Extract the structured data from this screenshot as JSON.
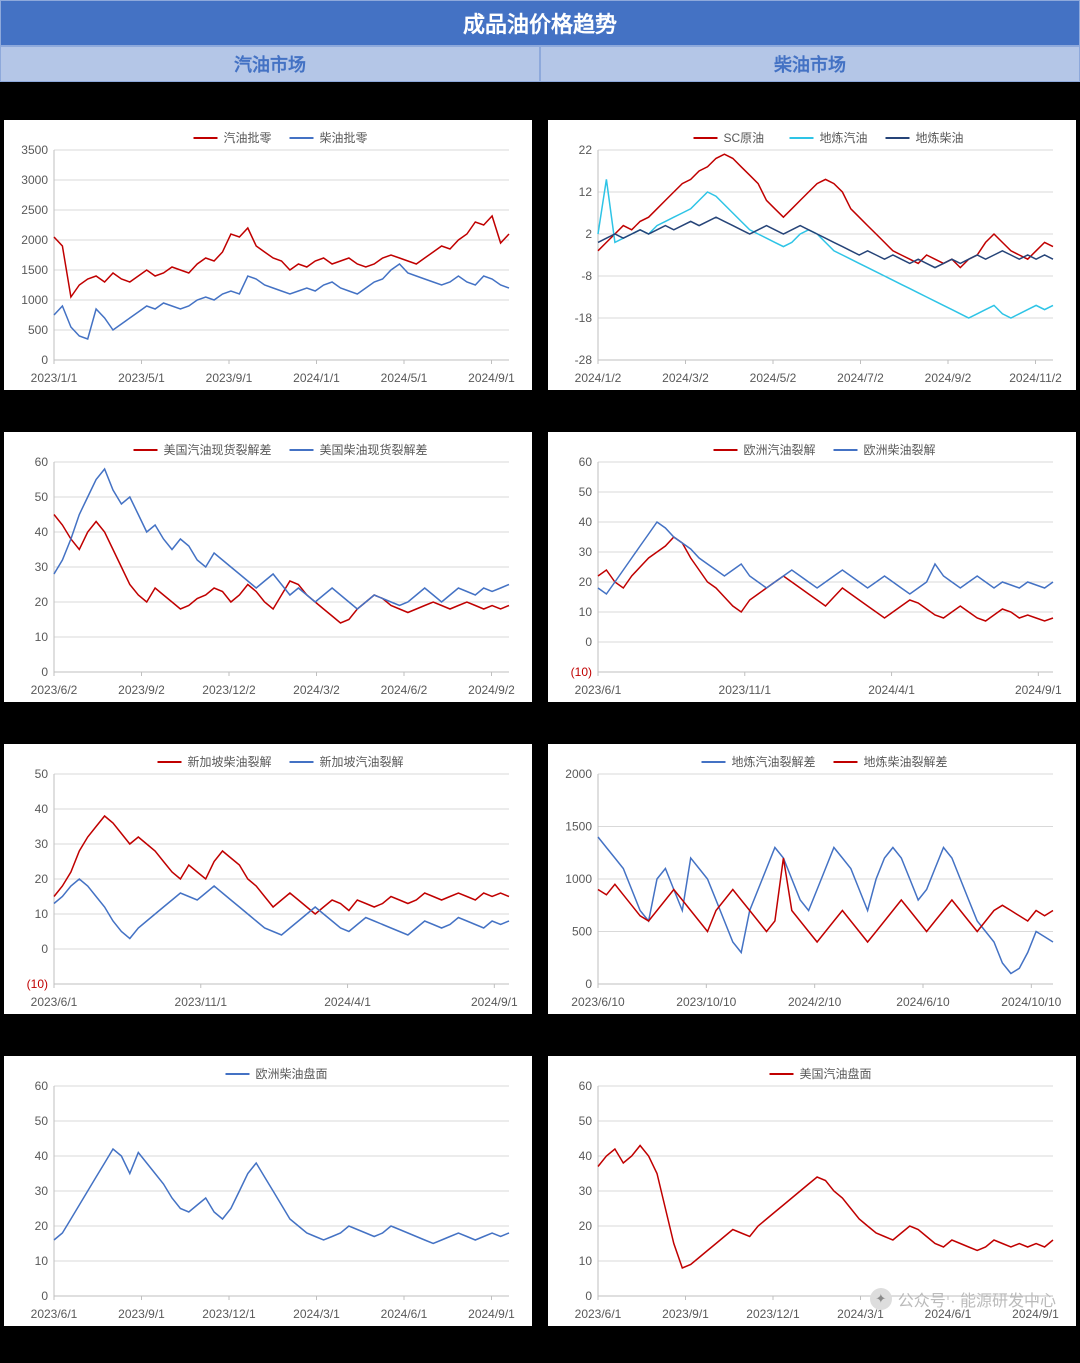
{
  "page_title": "成品油价格趋势",
  "subheaders": [
    "汽油市场",
    "柴油市场"
  ],
  "watermark": "公众号 · 能源研发中心",
  "colors": {
    "header_bg": "#4472c4",
    "subheader_bg": "#b4c6e7",
    "subheader_text": "#4472c4",
    "axis_text": "#595959",
    "grid": "#d9d9d9",
    "red": "#c00000",
    "blue": "#4472c4",
    "cyan": "#2ec4e6",
    "navy": "#264478"
  },
  "charts": [
    {
      "id": "c1",
      "type": "line",
      "legend": [
        {
          "label": "汽油批零",
          "color": "#c00000"
        },
        {
          "label": "柴油批零",
          "color": "#4472c4"
        }
      ],
      "xlabels": [
        "2023/1/1",
        "2023/5/1",
        "2023/9/1",
        "2024/1/1",
        "2024/5/1",
        "2024/9/1"
      ],
      "ylim": [
        0,
        3500
      ],
      "ystep": 500,
      "series": [
        {
          "color": "#c00000",
          "data": [
            2050,
            1900,
            1050,
            1250,
            1350,
            1400,
            1300,
            1450,
            1350,
            1300,
            1400,
            1500,
            1400,
            1450,
            1550,
            1500,
            1450,
            1600,
            1700,
            1650,
            1800,
            2100,
            2050,
            2200,
            1900,
            1800,
            1700,
            1650,
            1500,
            1600,
            1550,
            1650,
            1700,
            1600,
            1650,
            1700,
            1600,
            1550,
            1600,
            1700,
            1750,
            1700,
            1650,
            1600,
            1700,
            1800,
            1900,
            1850,
            2000,
            2100,
            2300,
            2250,
            2400,
            1950,
            2100
          ]
        },
        {
          "color": "#4472c4",
          "data": [
            750,
            900,
            550,
            400,
            350,
            850,
            700,
            500,
            600,
            700,
            800,
            900,
            850,
            950,
            900,
            850,
            900,
            1000,
            1050,
            1000,
            1100,
            1150,
            1100,
            1400,
            1350,
            1250,
            1200,
            1150,
            1100,
            1150,
            1200,
            1150,
            1250,
            1300,
            1200,
            1150,
            1100,
            1200,
            1300,
            1350,
            1500,
            1600,
            1450,
            1400,
            1350,
            1300,
            1250,
            1300,
            1400,
            1300,
            1250,
            1400,
            1350,
            1250,
            1200
          ]
        }
      ]
    },
    {
      "id": "c2",
      "type": "line",
      "legend": [
        {
          "label": "SC原油",
          "color": "#c00000"
        },
        {
          "label": "地炼汽油",
          "color": "#2ec4e6"
        },
        {
          "label": "地炼柴油",
          "color": "#264478"
        }
      ],
      "xlabels": [
        "2024/1/2",
        "2024/3/2",
        "2024/5/2",
        "2024/7/2",
        "2024/9/2",
        "2024/11/2"
      ],
      "ylim": [
        -28,
        22
      ],
      "yticks": [
        -28,
        -18,
        -8,
        2,
        12,
        22
      ],
      "series": [
        {
          "color": "#c00000",
          "data": [
            -2,
            0,
            2,
            4,
            3,
            5,
            6,
            8,
            10,
            12,
            14,
            15,
            17,
            18,
            20,
            21,
            20,
            18,
            16,
            14,
            10,
            8,
            6,
            8,
            10,
            12,
            14,
            15,
            14,
            12,
            8,
            6,
            4,
            2,
            0,
            -2,
            -3,
            -4,
            -5,
            -3,
            -4,
            -5,
            -4,
            -6,
            -4,
            -3,
            0,
            2,
            0,
            -2,
            -3,
            -4,
            -2,
            0,
            -1
          ]
        },
        {
          "color": "#2ec4e6",
          "data": [
            2,
            15,
            0,
            1,
            2,
            3,
            2,
            4,
            5,
            6,
            7,
            8,
            10,
            12,
            11,
            9,
            7,
            5,
            3,
            2,
            1,
            0,
            -1,
            0,
            2,
            3,
            2,
            0,
            -2,
            -3,
            -4,
            -5,
            -6,
            -7,
            -8,
            -9,
            -10,
            -11,
            -12,
            -13,
            -14,
            -15,
            -16,
            -17,
            -18,
            -17,
            -16,
            -15,
            -17,
            -18,
            -17,
            -16,
            -15,
            -16,
            -15
          ]
        },
        {
          "color": "#264478",
          "data": [
            0,
            1,
            2,
            1,
            2,
            3,
            2,
            3,
            4,
            3,
            4,
            5,
            4,
            5,
            6,
            5,
            4,
            3,
            2,
            3,
            4,
            3,
            2,
            3,
            4,
            3,
            2,
            1,
            0,
            -1,
            -2,
            -3,
            -2,
            -3,
            -4,
            -3,
            -4,
            -5,
            -4,
            -5,
            -6,
            -5,
            -4,
            -5,
            -4,
            -3,
            -4,
            -3,
            -2,
            -3,
            -4,
            -3,
            -4,
            -3,
            -4
          ]
        }
      ]
    },
    {
      "id": "c3",
      "type": "line",
      "legend": [
        {
          "label": "美国汽油现货裂解差",
          "color": "#c00000"
        },
        {
          "label": "美国柴油现货裂解差",
          "color": "#4472c4"
        }
      ],
      "xlabels": [
        "2023/6/2",
        "2023/9/2",
        "2023/12/2",
        "2024/3/2",
        "2024/6/2",
        "2024/9/2"
      ],
      "ylim": [
        0,
        60
      ],
      "ystep": 10,
      "series": [
        {
          "color": "#c00000",
          "data": [
            45,
            42,
            38,
            35,
            40,
            43,
            40,
            35,
            30,
            25,
            22,
            20,
            24,
            22,
            20,
            18,
            19,
            21,
            22,
            24,
            23,
            20,
            22,
            25,
            23,
            20,
            18,
            22,
            26,
            25,
            22,
            20,
            18,
            16,
            14,
            15,
            18,
            20,
            22,
            21,
            19,
            18,
            17,
            18,
            19,
            20,
            19,
            18,
            19,
            20,
            19,
            18,
            19,
            18,
            19
          ]
        },
        {
          "color": "#4472c4",
          "data": [
            28,
            32,
            38,
            45,
            50,
            55,
            58,
            52,
            48,
            50,
            45,
            40,
            42,
            38,
            35,
            38,
            36,
            32,
            30,
            34,
            32,
            30,
            28,
            26,
            24,
            26,
            28,
            25,
            22,
            24,
            22,
            20,
            22,
            24,
            22,
            20,
            18,
            20,
            22,
            21,
            20,
            19,
            20,
            22,
            24,
            22,
            20,
            22,
            24,
            23,
            22,
            24,
            23,
            24,
            25
          ]
        }
      ]
    },
    {
      "id": "c4",
      "type": "line",
      "legend": [
        {
          "label": "欧洲汽油裂解",
          "color": "#c00000"
        },
        {
          "label": "欧洲柴油裂解",
          "color": "#4472c4"
        }
      ],
      "xlabels": [
        "2023/6/1",
        "2023/11/1",
        "2024/4/1",
        "2024/9/1"
      ],
      "ylim": [
        -10,
        60
      ],
      "yticks": [
        -10,
        0,
        10,
        20,
        30,
        40,
        50,
        60
      ],
      "neg_labels_red": true,
      "series": [
        {
          "color": "#c00000",
          "data": [
            22,
            24,
            20,
            18,
            22,
            25,
            28,
            30,
            32,
            35,
            33,
            28,
            24,
            20,
            18,
            15,
            12,
            10,
            14,
            16,
            18,
            20,
            22,
            20,
            18,
            16,
            14,
            12,
            15,
            18,
            16,
            14,
            12,
            10,
            8,
            10,
            12,
            14,
            13,
            11,
            9,
            8,
            10,
            12,
            10,
            8,
            7,
            9,
            11,
            10,
            8,
            9,
            8,
            7,
            8
          ]
        },
        {
          "color": "#4472c4",
          "data": [
            18,
            16,
            20,
            24,
            28,
            32,
            36,
            40,
            38,
            35,
            33,
            31,
            28,
            26,
            24,
            22,
            24,
            26,
            22,
            20,
            18,
            20,
            22,
            24,
            22,
            20,
            18,
            20,
            22,
            24,
            22,
            20,
            18,
            20,
            22,
            20,
            18,
            16,
            18,
            20,
            26,
            22,
            20,
            18,
            20,
            22,
            20,
            18,
            20,
            19,
            18,
            20,
            19,
            18,
            20
          ]
        }
      ]
    },
    {
      "id": "c5",
      "type": "line",
      "legend": [
        {
          "label": "新加坡柴油裂解",
          "color": "#c00000"
        },
        {
          "label": "新加坡汽油裂解",
          "color": "#4472c4"
        }
      ],
      "xlabels": [
        "2023/6/1",
        "2023/11/1",
        "2024/4/1",
        "2024/9/1"
      ],
      "ylim": [
        -10,
        50
      ],
      "yticks": [
        -10,
        0,
        10,
        20,
        30,
        40,
        50
      ],
      "neg_labels_red": true,
      "series": [
        {
          "color": "#c00000",
          "data": [
            15,
            18,
            22,
            28,
            32,
            35,
            38,
            36,
            33,
            30,
            32,
            30,
            28,
            25,
            22,
            20,
            24,
            22,
            20,
            25,
            28,
            26,
            24,
            20,
            18,
            15,
            12,
            14,
            16,
            14,
            12,
            10,
            12,
            14,
            13,
            11,
            14,
            13,
            12,
            13,
            15,
            14,
            13,
            14,
            16,
            15,
            14,
            15,
            16,
            15,
            14,
            16,
            15,
            16,
            15
          ]
        },
        {
          "color": "#4472c4",
          "data": [
            13,
            15,
            18,
            20,
            18,
            15,
            12,
            8,
            5,
            3,
            6,
            8,
            10,
            12,
            14,
            16,
            15,
            14,
            16,
            18,
            16,
            14,
            12,
            10,
            8,
            6,
            5,
            4,
            6,
            8,
            10,
            12,
            10,
            8,
            6,
            5,
            7,
            9,
            8,
            7,
            6,
            5,
            4,
            6,
            8,
            7,
            6,
            7,
            9,
            8,
            7,
            6,
            8,
            7,
            8
          ]
        }
      ]
    },
    {
      "id": "c6",
      "type": "line",
      "legend": [
        {
          "label": "地炼汽油裂解差",
          "color": "#4472c4"
        },
        {
          "label": "地炼柴油裂解差",
          "color": "#c00000"
        }
      ],
      "xlabels": [
        "2023/6/10",
        "2023/10/10",
        "2024/2/10",
        "2024/6/10",
        "2024/10/10"
      ],
      "ylim": [
        0,
        2000
      ],
      "ystep": 500,
      "series": [
        {
          "color": "#4472c4",
          "data": [
            1400,
            1300,
            1200,
            1100,
            900,
            700,
            600,
            1000,
            1100,
            900,
            700,
            1200,
            1100,
            1000,
            800,
            600,
            400,
            300,
            700,
            900,
            1100,
            1300,
            1200,
            1000,
            800,
            700,
            900,
            1100,
            1300,
            1200,
            1100,
            900,
            700,
            1000,
            1200,
            1300,
            1200,
            1000,
            800,
            900,
            1100,
            1300,
            1200,
            1000,
            800,
            600,
            500,
            400,
            200,
            100,
            150,
            300,
            500,
            450,
            400
          ]
        },
        {
          "color": "#c00000",
          "data": [
            900,
            850,
            950,
            850,
            750,
            650,
            600,
            700,
            800,
            900,
            800,
            700,
            600,
            500,
            700,
            800,
            900,
            800,
            700,
            600,
            500,
            600,
            1200,
            700,
            600,
            500,
            400,
            500,
            600,
            700,
            600,
            500,
            400,
            500,
            600,
            700,
            800,
            700,
            600,
            500,
            600,
            700,
            800,
            700,
            600,
            500,
            600,
            700,
            750,
            700,
            650,
            600,
            700,
            650,
            700
          ]
        }
      ]
    },
    {
      "id": "c7",
      "type": "line",
      "legend": [
        {
          "label": "欧洲柴油盘面",
          "color": "#4472c4"
        }
      ],
      "xlabels": [
        "2023/6/1",
        "2023/9/1",
        "2023/12/1",
        "2024/3/1",
        "2024/6/1",
        "2024/9/1"
      ],
      "ylim": [
        0,
        60
      ],
      "ystep": 10,
      "series": [
        {
          "color": "#4472c4",
          "data": [
            16,
            18,
            22,
            26,
            30,
            34,
            38,
            42,
            40,
            35,
            41,
            38,
            35,
            32,
            28,
            25,
            24,
            26,
            28,
            24,
            22,
            25,
            30,
            35,
            38,
            34,
            30,
            26,
            22,
            20,
            18,
            17,
            16,
            17,
            18,
            20,
            19,
            18,
            17,
            18,
            20,
            19,
            18,
            17,
            16,
            15,
            16,
            17,
            18,
            17,
            16,
            17,
            18,
            17,
            18
          ]
        }
      ]
    },
    {
      "id": "c8",
      "type": "line",
      "legend": [
        {
          "label": "美国汽油盘面",
          "color": "#c00000"
        }
      ],
      "xlabels": [
        "2023/6/1",
        "2023/9/1",
        "2023/12/1",
        "2024/3/1",
        "2024/6/1",
        "2024/9/1"
      ],
      "ylim": [
        0,
        60
      ],
      "ystep": 10,
      "series": [
        {
          "color": "#c00000",
          "data": [
            37,
            40,
            42,
            38,
            40,
            43,
            40,
            35,
            25,
            15,
            8,
            9,
            11,
            13,
            15,
            17,
            19,
            18,
            17,
            20,
            22,
            24,
            26,
            28,
            30,
            32,
            34,
            33,
            30,
            28,
            25,
            22,
            20,
            18,
            17,
            16,
            18,
            20,
            19,
            17,
            15,
            14,
            16,
            15,
            14,
            13,
            14,
            16,
            15,
            14,
            15,
            14,
            15,
            14,
            16
          ]
        }
      ]
    }
  ]
}
